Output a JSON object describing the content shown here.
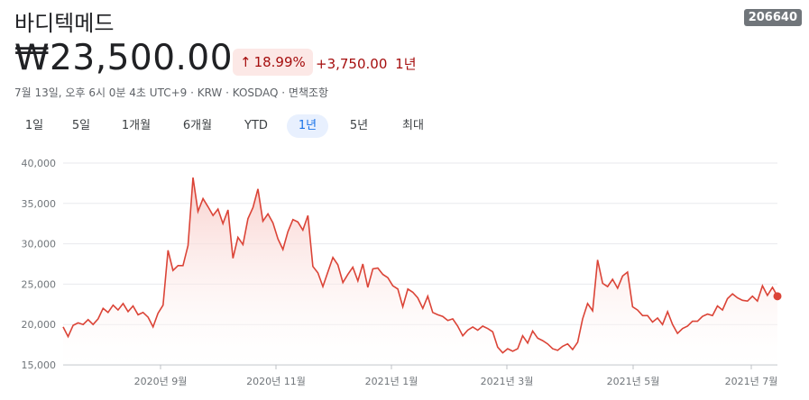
{
  "header": {
    "name": "바디텍메드",
    "ticker": "206640",
    "price": "₩23,500.00",
    "change_percent": "18.99%",
    "change_amount": "+3,750.00",
    "change_period": "1년",
    "meta": "7월 13일, 오후 6시 0분 4초 UTC+9 · KRW · KOSDAQ · 면책조항"
  },
  "ranges": [
    {
      "label": "1일",
      "active": false
    },
    {
      "label": "5일",
      "active": false
    },
    {
      "label": "1개월",
      "active": false
    },
    {
      "label": "6개월",
      "active": false
    },
    {
      "label": "YTD",
      "active": false
    },
    {
      "label": "1년",
      "active": true
    },
    {
      "label": "5년",
      "active": false
    },
    {
      "label": "최대",
      "active": false
    }
  ],
  "colors": {
    "line": "#db4437",
    "badge_bg": "#fce8e6",
    "badge_text": "#a50e0e",
    "active_tab": "#1a73e8"
  },
  "icons": {
    "change_arrow": "arrow-up-icon"
  },
  "chart_data": {
    "type": "area",
    "y_ticks": [
      "40,000",
      "35,000",
      "30,000",
      "25,000",
      "20,000",
      "15,000"
    ],
    "x_tick_labels": [
      "2020년 9월",
      "2020년 11월",
      "2021년 1월",
      "2021년 3월",
      "2021년 5월",
      "2021년 7월"
    ],
    "ylim": [
      15000,
      40000
    ],
    "grid": true,
    "series": [
      {
        "values": [
          19700,
          18500,
          19900,
          20200,
          20000,
          20600,
          20000,
          20700,
          22000,
          21500,
          22400,
          21800,
          22600,
          21600,
          22300,
          21200,
          21500,
          20900,
          19700,
          21400,
          22400,
          29200,
          26700,
          27300,
          27300,
          29800,
          38200,
          34000,
          35600,
          34600,
          33500,
          34300,
          32500,
          34200,
          28200,
          30800,
          29900,
          33100,
          34500,
          36800,
          32800,
          33700,
          32600,
          30600,
          29300,
          31500,
          33000,
          32700,
          31700,
          33500,
          27200,
          26400,
          24700,
          26500,
          28300,
          27400,
          25200,
          26200,
          27100,
          25400,
          27500,
          24600,
          26900,
          27000,
          26200,
          25800,
          24800,
          24400,
          22200,
          24400,
          24000,
          23300,
          22000,
          23500,
          21500,
          21200,
          21000,
          20500,
          20700,
          19800,
          18600,
          19300,
          19700,
          19300,
          19800,
          19500,
          19100,
          17200,
          16500,
          17000,
          16700,
          17000,
          18600,
          17700,
          19200,
          18300,
          18000,
          17600,
          17000,
          16800,
          17300,
          17600,
          16900,
          17800,
          20700,
          22600,
          21700,
          28000,
          25100,
          24700,
          25600,
          24500,
          26000,
          26500,
          22200,
          21800,
          21100,
          21100,
          20300,
          20800,
          20000,
          21600,
          20000,
          18900,
          19500,
          19800,
          20400,
          20400,
          21000,
          21300,
          21100,
          22300,
          21800,
          23200,
          23800,
          23300,
          23000,
          22900,
          23500,
          22900,
          24800,
          23600,
          24600,
          23500
        ]
      }
    ],
    "last_value": 23500
  }
}
